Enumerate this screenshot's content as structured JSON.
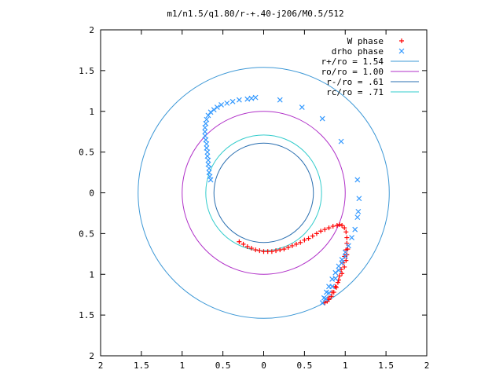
{
  "chart_data": {
    "type": "scatter",
    "title": "m1/n1.5/q1.80/r-+.40-j206/M0.5/512",
    "xlim": [
      -2,
      2
    ],
    "ylim": [
      -2,
      2
    ],
    "x_tick_values": [
      -2,
      -1.5,
      -1,
      -0.5,
      0,
      0.5,
      1,
      1.5,
      2
    ],
    "x_tick_labels": [
      "2",
      "1.5",
      "1",
      "0.5",
      "0",
      "0.5",
      "1",
      "1.5",
      "2"
    ],
    "y_tick_values": [
      2,
      1.5,
      1,
      0.5,
      0,
      -0.5,
      -1,
      -1.5,
      -2
    ],
    "y_tick_labels": [
      "2",
      "1.5",
      "1",
      "0.5",
      "0",
      "0.5",
      "1",
      "1.5",
      "2"
    ],
    "grid": false,
    "legend_position": "top-right",
    "legend": [
      {
        "label": "W phase",
        "kind": "plus",
        "color": "#ff0000"
      },
      {
        "label": "drho phase",
        "kind": "cross",
        "color": "#3399ff"
      },
      {
        "label": "r+/ro = 1.54",
        "kind": "line",
        "color": "#3d98d6"
      },
      {
        "label": "ro/ro = 1.00",
        "kind": "line",
        "color": "#b030c8"
      },
      {
        "label": "r-/ro = .61",
        "kind": "line",
        "color": "#2a6fb0"
      },
      {
        "label": "rc/ro = .71",
        "kind": "line",
        "color": "#33cccc"
      }
    ],
    "circles": [
      {
        "name": "r+/ro = 1.54",
        "radius": 1.54,
        "color": "#3d98d6"
      },
      {
        "name": "ro/ro = 1.00",
        "radius": 1.0,
        "color": "#b030c8"
      },
      {
        "name": "r-/ro = .61",
        "radius": 0.61,
        "color": "#2a6fb0"
      },
      {
        "name": "rc/ro = .71",
        "radius": 0.71,
        "color": "#33cccc"
      }
    ],
    "series": [
      {
        "name": "W phase",
        "marker": "plus",
        "color": "#ff0000",
        "points": [
          [
            -0.3,
            -0.6
          ],
          [
            -0.25,
            -0.63
          ],
          [
            -0.2,
            -0.66
          ],
          [
            -0.15,
            -0.68
          ],
          [
            -0.1,
            -0.7
          ],
          [
            -0.05,
            -0.71
          ],
          [
            0.0,
            -0.72
          ],
          [
            0.05,
            -0.72
          ],
          [
            0.1,
            -0.72
          ],
          [
            0.15,
            -0.71
          ],
          [
            0.2,
            -0.7
          ],
          [
            0.25,
            -0.69
          ],
          [
            0.3,
            -0.67
          ],
          [
            0.35,
            -0.65
          ],
          [
            0.4,
            -0.63
          ],
          [
            0.45,
            -0.61
          ],
          [
            0.5,
            -0.58
          ],
          [
            0.55,
            -0.56
          ],
          [
            0.6,
            -0.53
          ],
          [
            0.65,
            -0.5
          ],
          [
            0.7,
            -0.47
          ],
          [
            0.75,
            -0.45
          ],
          [
            0.8,
            -0.43
          ],
          [
            0.85,
            -0.41
          ],
          [
            0.9,
            -0.4
          ],
          [
            0.93,
            -0.39
          ],
          [
            0.96,
            -0.4
          ],
          [
            0.99,
            -0.43
          ],
          [
            1.01,
            -0.48
          ],
          [
            1.02,
            -0.55
          ],
          [
            1.02,
            -0.62
          ],
          [
            1.01,
            -0.7
          ],
          [
            0.99,
            -0.78
          ],
          [
            0.97,
            -0.86
          ],
          [
            0.95,
            -0.94
          ],
          [
            0.93,
            -1.02
          ],
          [
            0.91,
            -1.1
          ],
          [
            0.89,
            -1.16
          ],
          [
            0.86,
            -1.22
          ],
          [
            0.83,
            -1.27
          ],
          [
            0.8,
            -1.31
          ],
          [
            0.78,
            -1.33
          ],
          [
            0.75,
            -1.35
          ],
          [
            0.8,
            -1.29
          ],
          [
            0.84,
            -1.22
          ],
          [
            0.88,
            -1.15
          ],
          [
            0.92,
            -1.07
          ],
          [
            0.96,
            -0.99
          ],
          [
            0.99,
            -0.91
          ],
          [
            1.01,
            -0.83
          ],
          [
            1.02,
            -0.76
          ],
          [
            1.03,
            -0.69
          ]
        ]
      },
      {
        "name": "drho phase",
        "marker": "cross",
        "color": "#3399ff",
        "points": [
          [
            -0.65,
            0.16
          ],
          [
            -0.66,
            0.2
          ],
          [
            -0.67,
            0.25
          ],
          [
            -0.67,
            0.3
          ],
          [
            -0.68,
            0.35
          ],
          [
            -0.68,
            0.4
          ],
          [
            -0.69,
            0.45
          ],
          [
            -0.69,
            0.5
          ],
          [
            -0.7,
            0.55
          ],
          [
            -0.7,
            0.6
          ],
          [
            -0.71,
            0.65
          ],
          [
            -0.72,
            0.7
          ],
          [
            -0.72,
            0.75
          ],
          [
            -0.72,
            0.8
          ],
          [
            -0.71,
            0.85
          ],
          [
            -0.7,
            0.9
          ],
          [
            -0.68,
            0.95
          ],
          [
            -0.65,
            0.99
          ],
          [
            -0.61,
            1.02
          ],
          [
            -0.57,
            1.05
          ],
          [
            -0.52,
            1.08
          ],
          [
            -0.45,
            1.1
          ],
          [
            -0.38,
            1.12
          ],
          [
            -0.3,
            1.14
          ],
          [
            -0.2,
            1.15
          ],
          [
            -0.15,
            1.16
          ],
          [
            -0.1,
            1.17
          ],
          [
            0.2,
            1.14
          ],
          [
            0.47,
            1.05
          ],
          [
            0.72,
            0.91
          ],
          [
            0.95,
            0.63
          ],
          [
            1.15,
            0.16
          ],
          [
            1.17,
            -0.07
          ],
          [
            1.16,
            -0.23
          ],
          [
            1.15,
            -0.3
          ],
          [
            1.12,
            -0.45
          ],
          [
            1.08,
            -0.55
          ],
          [
            1.04,
            -0.65
          ],
          [
            1.0,
            -0.73
          ],
          [
            0.96,
            -0.82
          ],
          [
            0.92,
            -0.9
          ],
          [
            0.88,
            -0.98
          ],
          [
            0.84,
            -1.06
          ],
          [
            0.8,
            -1.15
          ],
          [
            0.77,
            -1.22
          ],
          [
            0.74,
            -1.29
          ],
          [
            0.72,
            -1.35
          ],
          [
            0.76,
            -1.3
          ],
          [
            0.8,
            -1.23
          ],
          [
            0.84,
            -1.15
          ],
          [
            0.88,
            -1.05
          ],
          [
            0.92,
            -0.95
          ],
          [
            0.96,
            -0.86
          ],
          [
            1.0,
            -0.78
          ]
        ]
      }
    ]
  }
}
